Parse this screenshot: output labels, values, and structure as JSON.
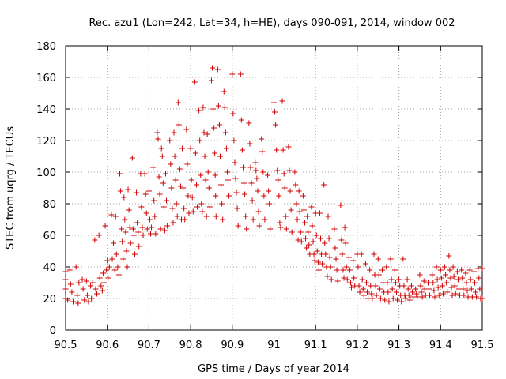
{
  "chart_data": {
    "type": "scatter",
    "title": "Rec. azu1 (Lon=242, Lat=34, h=HE), days 090-091, 2014, window 002",
    "xlabel": "GPS time / Days of year 2014",
    "ylabel": "STEC from uqrg / TECUs",
    "xlim": [
      90.5,
      91.5
    ],
    "ylim": [
      0,
      180
    ],
    "xticks": [
      "90.5",
      "90.6",
      "90.7",
      "90.8",
      "90.9",
      "91",
      "91.1",
      "91.2",
      "91.3",
      "91.4",
      "91.5"
    ],
    "yticks": [
      "0",
      "20",
      "40",
      "60",
      "80",
      "100",
      "120",
      "140",
      "160",
      "180"
    ],
    "grid": true,
    "marker": "plus",
    "color": "#d00000",
    "points": [
      [
        90.5,
        37
      ],
      [
        90.5,
        32
      ],
      [
        90.5,
        26
      ],
      [
        90.5,
        20
      ],
      [
        90.505,
        19
      ],
      [
        90.51,
        38
      ],
      [
        90.512,
        29
      ],
      [
        90.515,
        24
      ],
      [
        90.518,
        18
      ],
      [
        90.525,
        40
      ],
      [
        90.528,
        22
      ],
      [
        90.53,
        17
      ],
      [
        90.532,
        30
      ],
      [
        90.54,
        32
      ],
      [
        90.542,
        26
      ],
      [
        90.545,
        19
      ],
      [
        90.55,
        31
      ],
      [
        90.552,
        22
      ],
      [
        90.555,
        18
      ],
      [
        90.56,
        28
      ],
      [
        90.562,
        20
      ],
      [
        90.565,
        30
      ],
      [
        90.57,
        57
      ],
      [
        90.572,
        26
      ],
      [
        90.575,
        23
      ],
      [
        90.58,
        60
      ],
      [
        90.582,
        33
      ],
      [
        90.585,
        28
      ],
      [
        90.588,
        25
      ],
      [
        90.59,
        36
      ],
      [
        90.592,
        30
      ],
      [
        90.595,
        66
      ],
      [
        90.598,
        38
      ],
      [
        90.6,
        44
      ],
      [
        90.602,
        33
      ],
      [
        90.605,
        40
      ],
      [
        90.61,
        73
      ],
      [
        90.612,
        45
      ],
      [
        90.615,
        55
      ],
      [
        90.618,
        38
      ],
      [
        90.62,
        72
      ],
      [
        90.622,
        48
      ],
      [
        90.625,
        40
      ],
      [
        90.628,
        35
      ],
      [
        90.63,
        99
      ],
      [
        90.632,
        88
      ],
      [
        90.634,
        64
      ],
      [
        90.636,
        56
      ],
      [
        90.638,
        45
      ],
      [
        90.64,
        84
      ],
      [
        90.642,
        70
      ],
      [
        90.644,
        62
      ],
      [
        90.646,
        50
      ],
      [
        90.648,
        40
      ],
      [
        90.65,
        89
      ],
      [
        90.652,
        76
      ],
      [
        90.654,
        65
      ],
      [
        90.656,
        55
      ],
      [
        90.66,
        109
      ],
      [
        90.662,
        64
      ],
      [
        90.664,
        60
      ],
      [
        90.666,
        48
      ],
      [
        90.67,
        87
      ],
      [
        90.672,
        68
      ],
      [
        90.674,
        62
      ],
      [
        90.676,
        53
      ],
      [
        90.68,
        99
      ],
      [
        90.682,
        78
      ],
      [
        90.684,
        65
      ],
      [
        90.686,
        60
      ],
      [
        90.69,
        99
      ],
      [
        90.692,
        86
      ],
      [
        90.694,
        74
      ],
      [
        90.696,
        64
      ],
      [
        90.7,
        88
      ],
      [
        90.702,
        70
      ],
      [
        90.704,
        61
      ],
      [
        90.706,
        65
      ],
      [
        90.71,
        103
      ],
      [
        90.712,
        82
      ],
      [
        90.714,
        72
      ],
      [
        90.716,
        61
      ],
      [
        90.72,
        125
      ],
      [
        90.722,
        121
      ],
      [
        90.724,
        97
      ],
      [
        90.726,
        86
      ],
      [
        90.728,
        64
      ],
      [
        90.73,
        115
      ],
      [
        90.732,
        110
      ],
      [
        90.734,
        93
      ],
      [
        90.736,
        78
      ],
      [
        90.738,
        63
      ],
      [
        90.74,
        99
      ],
      [
        90.742,
        82
      ],
      [
        90.744,
        66
      ],
      [
        90.75,
        120
      ],
      [
        90.752,
        105
      ],
      [
        90.754,
        90
      ],
      [
        90.756,
        77
      ],
      [
        90.758,
        68
      ],
      [
        90.76,
        125
      ],
      [
        90.762,
        110
      ],
      [
        90.764,
        95
      ],
      [
        90.766,
        80
      ],
      [
        90.768,
        72
      ],
      [
        90.77,
        144
      ],
      [
        90.772,
        130
      ],
      [
        90.774,
        102
      ],
      [
        90.776,
        91
      ],
      [
        90.778,
        70
      ],
      [
        90.78,
        115
      ],
      [
        90.782,
        90
      ],
      [
        90.784,
        77
      ],
      [
        90.786,
        70
      ],
      [
        90.79,
        127
      ],
      [
        90.792,
        105
      ],
      [
        90.794,
        85
      ],
      [
        90.796,
        74
      ],
      [
        90.8,
        115
      ],
      [
        90.802,
        95
      ],
      [
        90.804,
        84
      ],
      [
        90.806,
        75
      ],
      [
        90.81,
        157
      ],
      [
        90.812,
        112
      ],
      [
        90.814,
        92
      ],
      [
        90.816,
        78
      ],
      [
        90.82,
        139
      ],
      [
        90.822,
        120
      ],
      [
        90.824,
        98
      ],
      [
        90.826,
        80
      ],
      [
        90.828,
        75
      ],
      [
        90.83,
        141
      ],
      [
        90.832,
        125
      ],
      [
        90.834,
        110
      ],
      [
        90.836,
        95
      ],
      [
        90.838,
        72
      ],
      [
        90.84,
        124
      ],
      [
        90.842,
        100
      ],
      [
        90.844,
        90
      ],
      [
        90.846,
        78
      ],
      [
        90.85,
        158
      ],
      [
        90.852,
        166
      ],
      [
        90.854,
        140
      ],
      [
        90.856,
        128
      ],
      [
        90.858,
        112
      ],
      [
        90.859,
        98
      ],
      [
        90.86,
        85
      ],
      [
        90.861,
        72
      ],
      [
        90.865,
        165
      ],
      [
        90.867,
        142
      ],
      [
        90.869,
        130
      ],
      [
        90.871,
        110
      ],
      [
        90.873,
        92
      ],
      [
        90.875,
        80
      ],
      [
        90.877,
        70
      ],
      [
        90.88,
        151
      ],
      [
        90.882,
        141
      ],
      [
        90.884,
        125
      ],
      [
        90.886,
        115
      ],
      [
        90.888,
        100
      ],
      [
        90.89,
        95
      ],
      [
        90.892,
        85
      ],
      [
        90.9,
        162
      ],
      [
        90.902,
        137
      ],
      [
        90.904,
        120
      ],
      [
        90.906,
        106
      ],
      [
        90.908,
        96
      ],
      [
        90.91,
        87
      ],
      [
        90.912,
        77
      ],
      [
        90.914,
        66
      ],
      [
        90.92,
        162
      ],
      [
        90.922,
        133
      ],
      [
        90.924,
        114
      ],
      [
        90.926,
        103
      ],
      [
        90.928,
        93
      ],
      [
        90.93,
        86
      ],
      [
        90.932,
        72
      ],
      [
        90.934,
        64
      ],
      [
        90.94,
        131
      ],
      [
        90.942,
        118
      ],
      [
        90.944,
        103
      ],
      [
        90.946,
        93
      ],
      [
        90.948,
        82
      ],
      [
        90.95,
        70
      ],
      [
        90.955,
        106
      ],
      [
        90.957,
        101
      ],
      [
        90.959,
        96
      ],
      [
        90.961,
        88
      ],
      [
        90.963,
        75
      ],
      [
        90.965,
        66
      ],
      [
        90.97,
        121
      ],
      [
        90.972,
        113
      ],
      [
        90.974,
        100
      ],
      [
        90.976,
        85
      ],
      [
        90.978,
        70
      ],
      [
        90.985,
        98
      ],
      [
        90.987,
        88
      ],
      [
        90.989,
        80
      ],
      [
        90.991,
        64
      ],
      [
        91.0,
        144
      ],
      [
        91.002,
        138
      ],
      [
        91.004,
        130
      ],
      [
        91.006,
        114
      ],
      [
        91.008,
        101
      ],
      [
        91.01,
        95
      ],
      [
        91.012,
        85
      ],
      [
        91.014,
        68
      ],
      [
        91.016,
        65
      ],
      [
        91.02,
        145
      ],
      [
        91.022,
        114
      ],
      [
        91.024,
        99
      ],
      [
        91.026,
        90
      ],
      [
        91.028,
        72
      ],
      [
        91.03,
        64
      ],
      [
        91.035,
        116
      ],
      [
        91.037,
        101
      ],
      [
        91.039,
        88
      ],
      [
        91.041,
        76
      ],
      [
        91.043,
        62
      ],
      [
        91.05,
        100
      ],
      [
        91.052,
        92
      ],
      [
        91.054,
        80
      ],
      [
        91.056,
        70
      ],
      [
        91.058,
        57
      ],
      [
        91.06,
        88
      ],
      [
        91.062,
        75
      ],
      [
        91.064,
        62
      ],
      [
        91.066,
        56
      ],
      [
        91.07,
        85
      ],
      [
        91.072,
        76
      ],
      [
        91.074,
        68
      ],
      [
        91.076,
        58
      ],
      [
        91.078,
        52
      ],
      [
        91.08,
        72
      ],
      [
        91.082,
        62
      ],
      [
        91.084,
        54
      ],
      [
        91.086,
        48
      ],
      [
        91.09,
        78
      ],
      [
        91.092,
        66
      ],
      [
        91.094,
        56
      ],
      [
        91.096,
        48
      ],
      [
        91.098,
        44
      ],
      [
        91.1,
        74
      ],
      [
        91.102,
        60
      ],
      [
        91.104,
        50
      ],
      [
        91.106,
        43
      ],
      [
        91.108,
        38
      ],
      [
        91.11,
        74
      ],
      [
        91.112,
        58
      ],
      [
        91.114,
        48
      ],
      [
        91.116,
        42
      ],
      [
        91.12,
        92
      ],
      [
        91.122,
        55
      ],
      [
        91.124,
        48
      ],
      [
        91.126,
        40
      ],
      [
        91.128,
        34
      ],
      [
        91.13,
        72
      ],
      [
        91.132,
        58
      ],
      [
        91.134,
        46
      ],
      [
        91.136,
        40
      ],
      [
        91.138,
        32
      ],
      [
        91.145,
        64
      ],
      [
        91.147,
        52
      ],
      [
        91.149,
        45
      ],
      [
        91.151,
        38
      ],
      [
        91.153,
        31
      ],
      [
        91.16,
        79
      ],
      [
        91.162,
        57
      ],
      [
        91.164,
        48
      ],
      [
        91.166,
        38
      ],
      [
        91.168,
        33
      ],
      [
        91.17,
        65
      ],
      [
        91.172,
        55
      ],
      [
        91.174,
        40
      ],
      [
        91.176,
        32
      ],
      [
        91.18,
        46
      ],
      [
        91.182,
        38
      ],
      [
        91.184,
        30
      ],
      [
        91.186,
        27
      ],
      [
        91.19,
        44
      ],
      [
        91.192,
        33
      ],
      [
        91.194,
        28
      ],
      [
        91.2,
        48
      ],
      [
        91.202,
        40
      ],
      [
        91.204,
        28
      ],
      [
        91.206,
        24
      ],
      [
        91.21,
        48
      ],
      [
        91.212,
        32
      ],
      [
        91.214,
        26
      ],
      [
        91.216,
        22
      ],
      [
        91.22,
        42
      ],
      [
        91.222,
        30
      ],
      [
        91.224,
        24
      ],
      [
        91.226,
        20
      ],
      [
        91.23,
        38
      ],
      [
        91.232,
        28
      ],
      [
        91.234,
        23
      ],
      [
        91.236,
        20
      ],
      [
        91.24,
        48
      ],
      [
        91.242,
        35
      ],
      [
        91.244,
        28
      ],
      [
        91.246,
        22
      ],
      [
        91.25,
        45
      ],
      [
        91.252,
        35
      ],
      [
        91.254,
        26
      ],
      [
        91.256,
        20
      ],
      [
        91.26,
        38
      ],
      [
        91.262,
        30
      ],
      [
        91.264,
        24
      ],
      [
        91.266,
        19
      ],
      [
        91.27,
        40
      ],
      [
        91.272,
        30
      ],
      [
        91.274,
        24
      ],
      [
        91.276,
        18
      ],
      [
        91.28,
        45
      ],
      [
        91.282,
        32
      ],
      [
        91.284,
        26
      ],
      [
        91.286,
        20
      ],
      [
        91.29,
        38
      ],
      [
        91.292,
        30
      ],
      [
        91.294,
        24
      ],
      [
        91.296,
        19
      ],
      [
        91.3,
        32
      ],
      [
        91.302,
        28
      ],
      [
        91.304,
        22
      ],
      [
        91.306,
        18
      ],
      [
        91.31,
        45
      ],
      [
        91.312,
        28
      ],
      [
        91.314,
        22
      ],
      [
        91.316,
        20
      ],
      [
        91.32,
        32
      ],
      [
        91.322,
        26
      ],
      [
        91.324,
        22
      ],
      [
        91.326,
        19
      ],
      [
        91.33,
        28
      ],
      [
        91.332,
        24
      ],
      [
        91.334,
        21
      ],
      [
        91.34,
        26
      ],
      [
        91.342,
        23
      ],
      [
        91.344,
        21
      ],
      [
        91.35,
        35
      ],
      [
        91.352,
        28
      ],
      [
        91.354,
        24
      ],
      [
        91.356,
        21
      ],
      [
        91.36,
        31
      ],
      [
        91.362,
        26
      ],
      [
        91.364,
        22
      ],
      [
        91.37,
        30
      ],
      [
        91.372,
        26
      ],
      [
        91.374,
        22
      ],
      [
        91.38,
        35
      ],
      [
        91.382,
        30
      ],
      [
        91.384,
        25
      ],
      [
        91.386,
        21
      ],
      [
        91.39,
        40
      ],
      [
        91.392,
        32
      ],
      [
        91.394,
        27
      ],
      [
        91.396,
        22
      ],
      [
        91.4,
        38
      ],
      [
        91.402,
        33
      ],
      [
        91.404,
        28
      ],
      [
        91.406,
        23
      ],
      [
        91.41,
        40
      ],
      [
        91.412,
        35
      ],
      [
        91.414,
        30
      ],
      [
        91.416,
        24
      ],
      [
        91.42,
        47
      ],
      [
        91.422,
        38
      ],
      [
        91.424,
        33
      ],
      [
        91.426,
        27
      ],
      [
        91.428,
        22
      ],
      [
        91.43,
        40
      ],
      [
        91.432,
        34
      ],
      [
        91.434,
        28
      ],
      [
        91.436,
        23
      ],
      [
        91.44,
        37
      ],
      [
        91.442,
        32
      ],
      [
        91.444,
        26
      ],
      [
        91.446,
        22
      ],
      [
        91.45,
        38
      ],
      [
        91.452,
        33
      ],
      [
        91.454,
        26
      ],
      [
        91.456,
        22
      ],
      [
        91.46,
        36
      ],
      [
        91.462,
        30
      ],
      [
        91.464,
        25
      ],
      [
        91.466,
        21
      ],
      [
        91.47,
        38
      ],
      [
        91.472,
        32
      ],
      [
        91.474,
        26
      ],
      [
        91.476,
        21
      ],
      [
        91.48,
        37
      ],
      [
        91.482,
        30
      ],
      [
        91.484,
        24
      ],
      [
        91.486,
        21
      ],
      [
        91.49,
        39
      ],
      [
        91.492,
        33
      ],
      [
        91.494,
        26
      ],
      [
        91.496,
        20
      ],
      [
        91.5,
        39
      ],
      [
        91.5,
        20
      ]
    ]
  }
}
